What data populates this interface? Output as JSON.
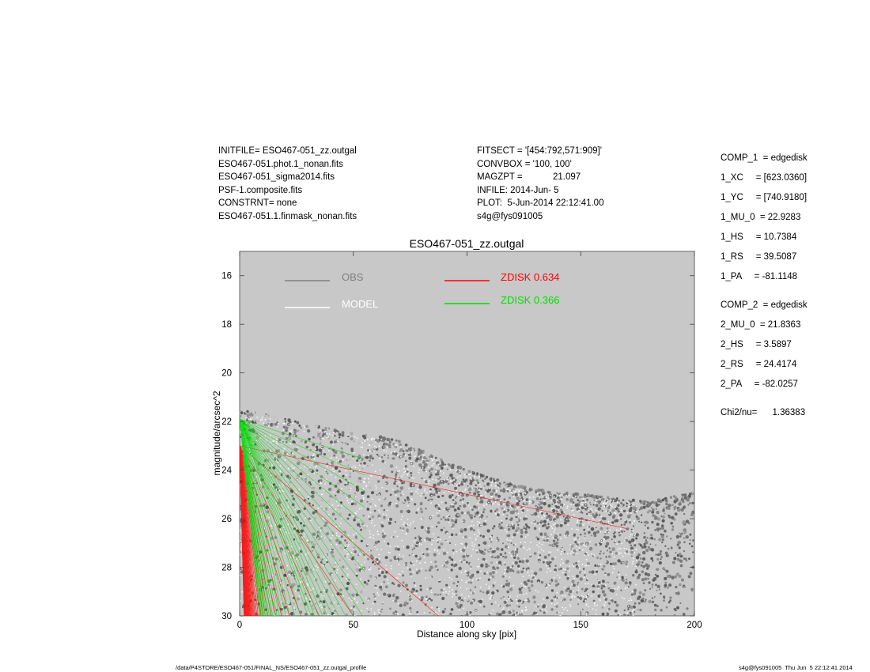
{
  "header": {
    "left_lines": [
      "INITFILE= ESO467-051_zz.outgal",
      "ESO467-051.phot.1_nonan.fits",
      "ESO467-051_sigma2014.fits",
      "PSF-1.composite.fits",
      "CONSTRNT= none",
      "ESO467-051.1.finmask_nonan.fits"
    ],
    "middle_lines": [
      "FITSECT = '[454:792,571:909]'",
      "CONVBOX = '100, 100'",
      "MAGZPT =            21.097",
      "INFILE: 2014-Jun- 5",
      "PLOT:  5-Jun-2014 22:12:41.00",
      "s4g@fys091005"
    ]
  },
  "params": {
    "comp1": [
      "COMP_1  = edgedisk",
      "1_XC     = [623.0360]",
      "1_YC     = [740.9180]",
      "1_MU_0  = 22.9283",
      "1_HS     = 10.7384",
      "1_RS     = 39.5087",
      "1_PA     = -81.1148"
    ],
    "comp2": [
      "COMP_2  = edgedisk",
      "2_MU_0  = 21.8363",
      "2_HS     = 3.5897",
      "2_RS     = 24.4174",
      "2_PA     = -82.0257"
    ],
    "chi2": "Chi2/nu=      1.36383"
  },
  "footer": {
    "left": "/data/P4STORE/ESO467-051/FINAL_NS/ESO467-051_zz.outgal_profile",
    "right": "s4g@fys091005  Thu Jun  5 22:12:41 2014"
  },
  "chart_data": {
    "type": "scatter",
    "title": "ESO467-051_zz.outgal",
    "xlabel": "Distance along sky [pix]",
    "ylabel": "magnitude/arcsec^2",
    "xlim": [
      0,
      200
    ],
    "ylim": [
      30,
      15
    ],
    "y_inverted": true,
    "x_ticks": [
      0,
      50,
      100,
      150,
      200
    ],
    "y_ticks": [
      16,
      18,
      20,
      22,
      24,
      26,
      28,
      30
    ],
    "background": "#c8c8c8",
    "legend": [
      {
        "label": "OBS",
        "value": "",
        "color": "#808080"
      },
      {
        "label": "MODEL",
        "value": "",
        "color": "#ffffff"
      },
      {
        "label": "ZDISK",
        "value": "0.634",
        "color": "#ff0000"
      },
      {
        "label": "ZDISK",
        "value": "0.366",
        "color": "#00dd00"
      }
    ],
    "series": [
      {
        "name": "OBS",
        "color": "#505050",
        "upper_envelope": [
          [
            0,
            21.5
          ],
          [
            10,
            21.7
          ],
          [
            20,
            21.9
          ],
          [
            30,
            22.1
          ],
          [
            40,
            22.3
          ],
          [
            50,
            22.5
          ],
          [
            60,
            22.6
          ],
          [
            70,
            22.8
          ],
          [
            80,
            23.2
          ],
          [
            90,
            23.6
          ],
          [
            100,
            24.0
          ],
          [
            110,
            24.3
          ],
          [
            120,
            24.6
          ],
          [
            130,
            24.8
          ],
          [
            140,
            24.9
          ],
          [
            150,
            25.0
          ],
          [
            160,
            25.1
          ],
          [
            170,
            25.2
          ],
          [
            180,
            25.3
          ],
          [
            190,
            25.1
          ],
          [
            200,
            24.9
          ]
        ]
      },
      {
        "name": "ZDISK 0.634",
        "color": "#ff0000",
        "mu0": 22.9283,
        "x_start": [
          0,
          23.0
        ],
        "x_end": [
          170,
          26.5
        ]
      },
      {
        "name": "ZDISK 0.366",
        "color": "#00dd00",
        "mu0": 21.8363,
        "x_start": [
          0,
          21.9
        ],
        "x_end": [
          50,
          23.3
        ]
      }
    ]
  }
}
